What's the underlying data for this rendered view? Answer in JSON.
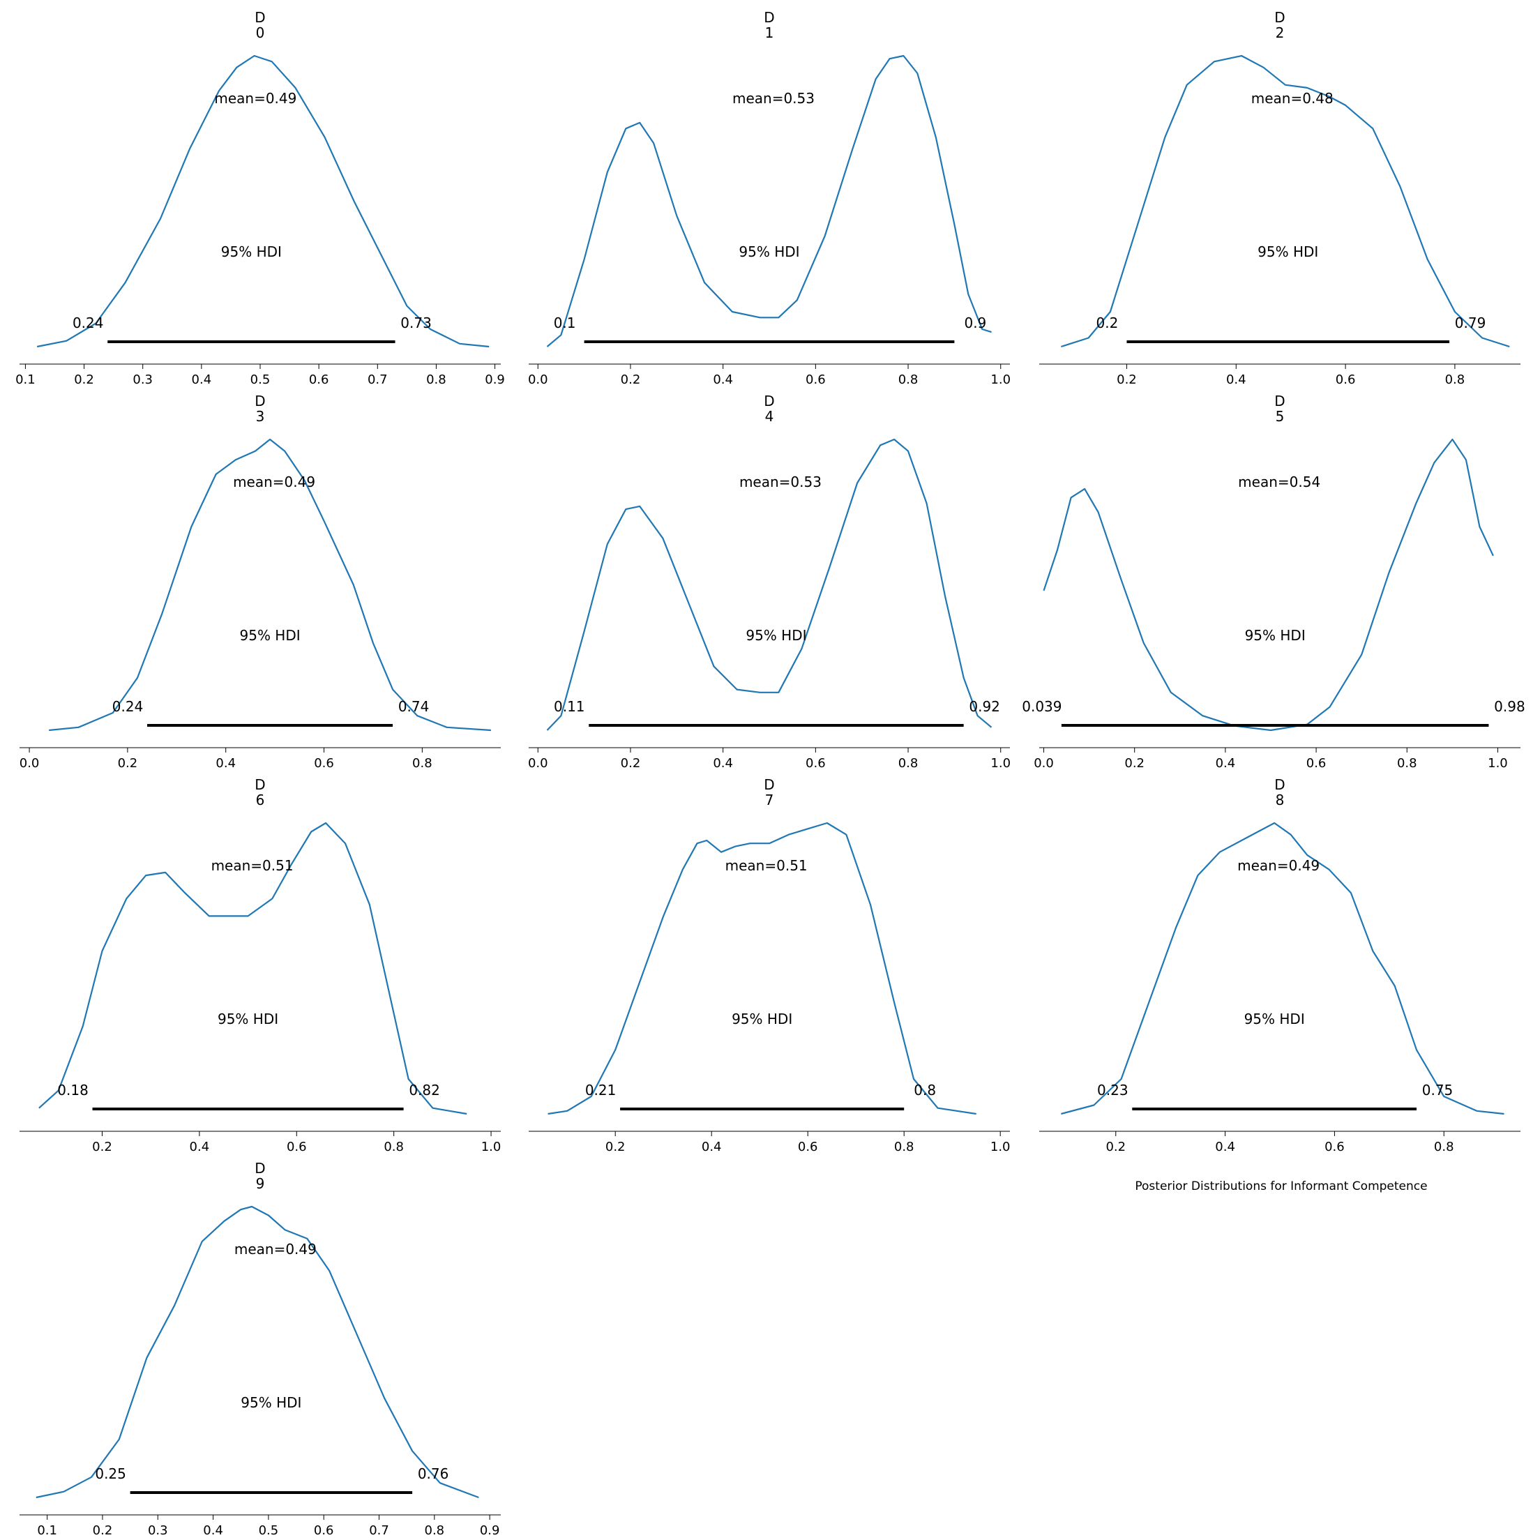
{
  "chart_data": {
    "type": "area",
    "suptitle": "Posterior Distributions for Informant Competence",
    "hdi_label": "95% HDI",
    "subplots": [
      {
        "title": [
          "D",
          "0"
        ],
        "mean_label": "mean=0.49",
        "hdi": [
          0.24,
          0.73
        ],
        "hdi_labels": [
          "0.24",
          "0.73"
        ],
        "xlim": [
          0.09,
          0.91
        ],
        "ticks": [
          0.1,
          0.2,
          0.3,
          0.4,
          0.5,
          0.6,
          0.7,
          0.8,
          0.9
        ],
        "tick_labels": [
          "0.1",
          "0.2",
          "0.3",
          "0.4",
          "0.5",
          "0.6",
          "0.7",
          "0.8",
          "0.9"
        ],
        "density": [
          [
            0.12,
            0.0
          ],
          [
            0.17,
            0.02
          ],
          [
            0.22,
            0.08
          ],
          [
            0.27,
            0.22
          ],
          [
            0.33,
            0.44
          ],
          [
            0.38,
            0.68
          ],
          [
            0.43,
            0.88
          ],
          [
            0.46,
            0.96
          ],
          [
            0.49,
            1.0
          ],
          [
            0.52,
            0.98
          ],
          [
            0.56,
            0.89
          ],
          [
            0.61,
            0.72
          ],
          [
            0.66,
            0.5
          ],
          [
            0.71,
            0.3
          ],
          [
            0.75,
            0.14
          ],
          [
            0.79,
            0.06
          ],
          [
            0.84,
            0.01
          ],
          [
            0.89,
            0.0
          ]
        ]
      },
      {
        "title": [
          "D",
          "1"
        ],
        "mean_label": "mean=0.53",
        "hdi": [
          0.1,
          0.9
        ],
        "hdi_labels": [
          "0.1",
          "0.9"
        ],
        "xlim": [
          -0.02,
          1.02
        ],
        "ticks": [
          0.0,
          0.2,
          0.4,
          0.6,
          0.8,
          1.0
        ],
        "tick_labels": [
          "0.0",
          "0.2",
          "0.4",
          "0.6",
          "0.8",
          "1.0"
        ],
        "density": [
          [
            0.02,
            0.0
          ],
          [
            0.05,
            0.04
          ],
          [
            0.1,
            0.3
          ],
          [
            0.15,
            0.6
          ],
          [
            0.19,
            0.75
          ],
          [
            0.22,
            0.77
          ],
          [
            0.25,
            0.7
          ],
          [
            0.3,
            0.45
          ],
          [
            0.36,
            0.22
          ],
          [
            0.42,
            0.12
          ],
          [
            0.48,
            0.1
          ],
          [
            0.52,
            0.1
          ],
          [
            0.56,
            0.16
          ],
          [
            0.62,
            0.38
          ],
          [
            0.68,
            0.68
          ],
          [
            0.73,
            0.92
          ],
          [
            0.76,
            0.99
          ],
          [
            0.79,
            1.0
          ],
          [
            0.82,
            0.94
          ],
          [
            0.86,
            0.72
          ],
          [
            0.9,
            0.42
          ],
          [
            0.93,
            0.18
          ],
          [
            0.96,
            0.06
          ],
          [
            0.98,
            0.05
          ]
        ]
      },
      {
        "title": [
          "D",
          "2"
        ],
        "mean_label": "mean=0.48",
        "hdi": [
          0.2,
          0.79
        ],
        "hdi_labels": [
          "0.2",
          "0.79"
        ],
        "xlim": [
          0.04,
          0.92
        ],
        "ticks": [
          0.2,
          0.4,
          0.6,
          0.8
        ],
        "tick_labels": [
          "0.2",
          "0.4",
          "0.6",
          "0.8"
        ],
        "density": [
          [
            0.08,
            0.0
          ],
          [
            0.13,
            0.03
          ],
          [
            0.17,
            0.12
          ],
          [
            0.22,
            0.42
          ],
          [
            0.27,
            0.72
          ],
          [
            0.31,
            0.9
          ],
          [
            0.36,
            0.98
          ],
          [
            0.41,
            1.0
          ],
          [
            0.45,
            0.96
          ],
          [
            0.49,
            0.9
          ],
          [
            0.53,
            0.89
          ],
          [
            0.57,
            0.86
          ],
          [
            0.6,
            0.83
          ],
          [
            0.65,
            0.75
          ],
          [
            0.7,
            0.55
          ],
          [
            0.75,
            0.3
          ],
          [
            0.8,
            0.12
          ],
          [
            0.85,
            0.03
          ],
          [
            0.9,
            0.0
          ]
        ]
      },
      {
        "title": [
          "D",
          "3"
        ],
        "mean_label": "mean=0.49",
        "hdi": [
          0.24,
          0.74
        ],
        "hdi_labels": [
          "0.24",
          "0.74"
        ],
        "xlim": [
          -0.02,
          0.96
        ],
        "ticks": [
          0.0,
          0.2,
          0.4,
          0.6,
          0.8
        ],
        "tick_labels": [
          "0.0",
          "0.2",
          "0.4",
          "0.6",
          "0.8"
        ],
        "density": [
          [
            0.04,
            0.0
          ],
          [
            0.1,
            0.01
          ],
          [
            0.17,
            0.06
          ],
          [
            0.22,
            0.18
          ],
          [
            0.27,
            0.4
          ],
          [
            0.33,
            0.7
          ],
          [
            0.38,
            0.88
          ],
          [
            0.42,
            0.93
          ],
          [
            0.46,
            0.96
          ],
          [
            0.49,
            1.0
          ],
          [
            0.52,
            0.96
          ],
          [
            0.56,
            0.86
          ],
          [
            0.6,
            0.72
          ],
          [
            0.66,
            0.5
          ],
          [
            0.7,
            0.3
          ],
          [
            0.74,
            0.14
          ],
          [
            0.79,
            0.05
          ],
          [
            0.85,
            0.01
          ],
          [
            0.94,
            0.0
          ]
        ]
      },
      {
        "title": [
          "D",
          "4"
        ],
        "mean_label": "mean=0.53",
        "hdi": [
          0.11,
          0.92
        ],
        "hdi_labels": [
          "0.11",
          "0.92"
        ],
        "xlim": [
          -0.02,
          1.02
        ],
        "ticks": [
          0.0,
          0.2,
          0.4,
          0.6,
          0.8,
          1.0
        ],
        "tick_labels": [
          "0.0",
          "0.2",
          "0.4",
          "0.6",
          "0.8",
          "1.0"
        ],
        "density": [
          [
            0.02,
            0.0
          ],
          [
            0.05,
            0.05
          ],
          [
            0.1,
            0.34
          ],
          [
            0.15,
            0.64
          ],
          [
            0.19,
            0.76
          ],
          [
            0.22,
            0.77
          ],
          [
            0.27,
            0.66
          ],
          [
            0.33,
            0.42
          ],
          [
            0.38,
            0.22
          ],
          [
            0.43,
            0.14
          ],
          [
            0.48,
            0.13
          ],
          [
            0.52,
            0.13
          ],
          [
            0.57,
            0.28
          ],
          [
            0.63,
            0.56
          ],
          [
            0.69,
            0.85
          ],
          [
            0.74,
            0.98
          ],
          [
            0.77,
            1.0
          ],
          [
            0.8,
            0.96
          ],
          [
            0.84,
            0.78
          ],
          [
            0.88,
            0.46
          ],
          [
            0.92,
            0.18
          ],
          [
            0.95,
            0.05
          ],
          [
            0.98,
            0.01
          ]
        ]
      },
      {
        "title": [
          "D",
          "5"
        ],
        "mean_label": "mean=0.54",
        "hdi": [
          0.039,
          0.98
        ],
        "hdi_labels": [
          "0.039",
          "0.98"
        ],
        "xlim": [
          -0.01,
          1.05
        ],
        "ticks": [
          0.0,
          0.2,
          0.4,
          0.6,
          0.8,
          1.0
        ],
        "tick_labels": [
          "0.0",
          "0.2",
          "0.4",
          "0.6",
          "0.8",
          "1.0"
        ],
        "density": [
          [
            0.0,
            0.48
          ],
          [
            0.03,
            0.62
          ],
          [
            0.06,
            0.8
          ],
          [
            0.09,
            0.83
          ],
          [
            0.12,
            0.75
          ],
          [
            0.17,
            0.52
          ],
          [
            0.22,
            0.3
          ],
          [
            0.28,
            0.13
          ],
          [
            0.35,
            0.05
          ],
          [
            0.42,
            0.015
          ],
          [
            0.5,
            0.0
          ],
          [
            0.58,
            0.02
          ],
          [
            0.63,
            0.08
          ],
          [
            0.7,
            0.26
          ],
          [
            0.76,
            0.54
          ],
          [
            0.82,
            0.78
          ],
          [
            0.86,
            0.92
          ],
          [
            0.9,
            1.0
          ],
          [
            0.93,
            0.93
          ],
          [
            0.96,
            0.7
          ],
          [
            0.99,
            0.6
          ]
        ]
      },
      {
        "title": [
          "D",
          "6"
        ],
        "mean_label": "mean=0.51",
        "hdi": [
          0.18,
          0.82
        ],
        "hdi_labels": [
          "0.18",
          "0.82"
        ],
        "xlim": [
          0.03,
          1.02
        ],
        "ticks": [
          0.2,
          0.4,
          0.6,
          0.8,
          1.0
        ],
        "tick_labels": [
          "0.2",
          "0.4",
          "0.6",
          "0.8",
          "1.0"
        ],
        "density": [
          [
            0.07,
            0.02
          ],
          [
            0.11,
            0.08
          ],
          [
            0.16,
            0.3
          ],
          [
            0.2,
            0.56
          ],
          [
            0.25,
            0.74
          ],
          [
            0.29,
            0.82
          ],
          [
            0.33,
            0.83
          ],
          [
            0.37,
            0.76
          ],
          [
            0.42,
            0.68
          ],
          [
            0.46,
            0.68
          ],
          [
            0.5,
            0.68
          ],
          [
            0.55,
            0.74
          ],
          [
            0.59,
            0.86
          ],
          [
            0.63,
            0.97
          ],
          [
            0.66,
            1.0
          ],
          [
            0.7,
            0.93
          ],
          [
            0.75,
            0.72
          ],
          [
            0.79,
            0.42
          ],
          [
            0.83,
            0.12
          ],
          [
            0.88,
            0.02
          ],
          [
            0.95,
            0.0
          ]
        ]
      },
      {
        "title": [
          "D",
          "7"
        ],
        "mean_label": "mean=0.51",
        "hdi": [
          0.21,
          0.8
        ],
        "hdi_labels": [
          "0.21",
          "0.8"
        ],
        "xlim": [
          0.02,
          1.02
        ],
        "ticks": [
          0.2,
          0.4,
          0.6,
          0.8,
          1.0
        ],
        "tick_labels": [
          "0.2",
          "0.4",
          "0.6",
          "0.8",
          "1.0"
        ],
        "density": [
          [
            0.06,
            0.0
          ],
          [
            0.1,
            0.01
          ],
          [
            0.15,
            0.06
          ],
          [
            0.2,
            0.22
          ],
          [
            0.25,
            0.45
          ],
          [
            0.3,
            0.68
          ],
          [
            0.34,
            0.84
          ],
          [
            0.37,
            0.93
          ],
          [
            0.39,
            0.94
          ],
          [
            0.42,
            0.9
          ],
          [
            0.45,
            0.92
          ],
          [
            0.48,
            0.93
          ],
          [
            0.52,
            0.93
          ],
          [
            0.56,
            0.96
          ],
          [
            0.6,
            0.98
          ],
          [
            0.64,
            1.0
          ],
          [
            0.68,
            0.96
          ],
          [
            0.73,
            0.72
          ],
          [
            0.78,
            0.38
          ],
          [
            0.82,
            0.12
          ],
          [
            0.87,
            0.02
          ],
          [
            0.95,
            0.0
          ]
        ]
      },
      {
        "title": [
          "D",
          "8"
        ],
        "mean_label": "mean=0.49",
        "hdi": [
          0.23,
          0.75
        ],
        "hdi_labels": [
          "0.23",
          "0.75"
        ],
        "xlim": [
          0.06,
          0.94
        ],
        "ticks": [
          0.2,
          0.4,
          0.6,
          0.8
        ],
        "tick_labels": [
          "0.2",
          "0.4",
          "0.6",
          "0.8"
        ],
        "density": [
          [
            0.1,
            0.0
          ],
          [
            0.16,
            0.03
          ],
          [
            0.21,
            0.12
          ],
          [
            0.26,
            0.38
          ],
          [
            0.31,
            0.64
          ],
          [
            0.35,
            0.82
          ],
          [
            0.39,
            0.9
          ],
          [
            0.43,
            0.94
          ],
          [
            0.46,
            0.97
          ],
          [
            0.49,
            1.0
          ],
          [
            0.52,
            0.96
          ],
          [
            0.55,
            0.89
          ],
          [
            0.59,
            0.84
          ],
          [
            0.63,
            0.76
          ],
          [
            0.67,
            0.56
          ],
          [
            0.71,
            0.44
          ],
          [
            0.75,
            0.22
          ],
          [
            0.8,
            0.06
          ],
          [
            0.86,
            0.01
          ],
          [
            0.91,
            0.0
          ]
        ]
      },
      {
        "title": [
          "D",
          "9"
        ],
        "mean_label": "mean=0.49",
        "hdi": [
          0.25,
          0.76
        ],
        "hdi_labels": [
          "0.25",
          "0.76"
        ],
        "xlim": [
          0.05,
          0.92
        ],
        "ticks": [
          0.1,
          0.2,
          0.3,
          0.4,
          0.5,
          0.6,
          0.7,
          0.8,
          0.9
        ],
        "tick_labels": [
          "0.1",
          "0.2",
          "0.3",
          "0.4",
          "0.5",
          "0.6",
          "0.7",
          "0.8",
          "0.9"
        ],
        "density": [
          [
            0.08,
            0.0
          ],
          [
            0.13,
            0.02
          ],
          [
            0.18,
            0.07
          ],
          [
            0.23,
            0.2
          ],
          [
            0.28,
            0.48
          ],
          [
            0.33,
            0.66
          ],
          [
            0.38,
            0.88
          ],
          [
            0.42,
            0.95
          ],
          [
            0.45,
            0.99
          ],
          [
            0.47,
            1.0
          ],
          [
            0.5,
            0.97
          ],
          [
            0.53,
            0.92
          ],
          [
            0.57,
            0.89
          ],
          [
            0.61,
            0.78
          ],
          [
            0.66,
            0.56
          ],
          [
            0.71,
            0.34
          ],
          [
            0.76,
            0.16
          ],
          [
            0.81,
            0.05
          ],
          [
            0.88,
            0.0
          ]
        ]
      }
    ]
  }
}
